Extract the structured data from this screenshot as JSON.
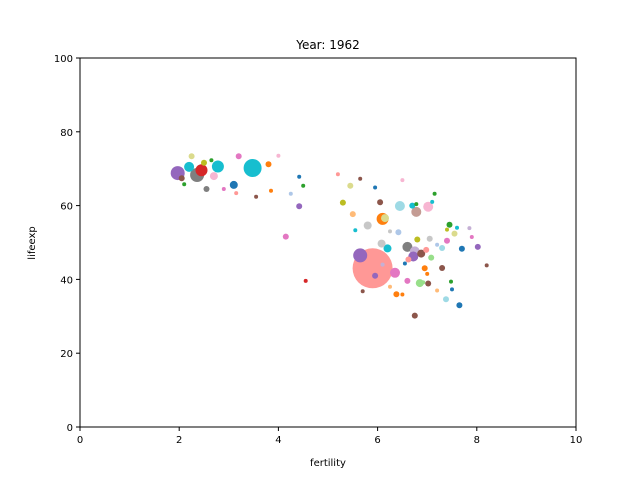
{
  "chart_data": {
    "type": "scatter",
    "title": "Year: 1962",
    "xlabel": "fertility",
    "ylabel": "lifeexp",
    "xlim": [
      0,
      10
    ],
    "ylim": [
      0,
      100
    ],
    "xticks": [
      "0",
      "2",
      "4",
      "6",
      "8",
      "10"
    ],
    "yticks": [
      "0",
      "20",
      "40",
      "60",
      "80",
      "100"
    ],
    "grid": false,
    "legend": "none",
    "points": [
      {
        "x": 5.9,
        "y": 43.0,
        "s": 20,
        "color": "#ff9896"
      },
      {
        "x": 3.48,
        "y": 70.2,
        "s": 9,
        "color": "#17becf"
      },
      {
        "x": 5.65,
        "y": 46.5,
        "s": 7,
        "color": "#9467bd"
      },
      {
        "x": 2.36,
        "y": 68.3,
        "s": 7,
        "color": "#7f7f7f"
      },
      {
        "x": 1.97,
        "y": 68.8,
        "s": 7,
        "color": "#9467bd"
      },
      {
        "x": 2.45,
        "y": 69.6,
        "s": 6,
        "color": "#d62728"
      },
      {
        "x": 2.78,
        "y": 70.6,
        "s": 6,
        "color": "#17becf"
      },
      {
        "x": 2.2,
        "y": 70.5,
        "s": 5,
        "color": "#17becf"
      },
      {
        "x": 6.1,
        "y": 56.4,
        "s": 6,
        "color": "#ff7f0e"
      },
      {
        "x": 6.15,
        "y": 56.6,
        "s": 4,
        "color": "#dbdb8d"
      },
      {
        "x": 6.78,
        "y": 58.3,
        "s": 5,
        "color": "#c49c94"
      },
      {
        "x": 6.45,
        "y": 59.9,
        "s": 5,
        "color": "#9edae5"
      },
      {
        "x": 7.02,
        "y": 59.7,
        "s": 5,
        "color": "#f7b6d2"
      },
      {
        "x": 6.35,
        "y": 41.8,
        "s": 5,
        "color": "#e377c2"
      },
      {
        "x": 6.2,
        "y": 48.4,
        "s": 4,
        "color": "#17becf"
      },
      {
        "x": 6.6,
        "y": 48.8,
        "s": 5,
        "color": "#7f7f7f"
      },
      {
        "x": 6.75,
        "y": 47.6,
        "s": 5,
        "color": "#c5b0d5"
      },
      {
        "x": 6.88,
        "y": 47.0,
        "s": 4,
        "color": "#8c564b"
      },
      {
        "x": 6.72,
        "y": 46.2,
        "s": 5,
        "color": "#9467bd"
      },
      {
        "x": 5.8,
        "y": 54.6,
        "s": 4,
        "color": "#c7c7c7"
      },
      {
        "x": 6.08,
        "y": 49.7,
        "s": 4,
        "color": "#c7c7c7"
      },
      {
        "x": 6.85,
        "y": 39.0,
        "s": 4,
        "color": "#98df8a"
      },
      {
        "x": 2.7,
        "y": 68.0,
        "s": 4,
        "color": "#f7b6d2"
      },
      {
        "x": 3.1,
        "y": 65.6,
        "s": 4,
        "color": "#1f77b4"
      },
      {
        "x": 3.8,
        "y": 71.2,
        "s": 3,
        "color": "#ff7f0e"
      },
      {
        "x": 6.38,
        "y": 36.0,
        "s": 3,
        "color": "#ff7f0e"
      },
      {
        "x": 6.42,
        "y": 52.8,
        "s": 3,
        "color": "#aec7e8"
      },
      {
        "x": 2.05,
        "y": 67.4,
        "s": 3,
        "color": "#8c564b"
      },
      {
        "x": 2.5,
        "y": 71.6,
        "s": 3,
        "color": "#bcbd22"
      },
      {
        "x": 2.25,
        "y": 73.4,
        "s": 3,
        "color": "#dbdb8d"
      },
      {
        "x": 3.2,
        "y": 73.4,
        "s": 3,
        "color": "#e377c2"
      },
      {
        "x": 2.55,
        "y": 64.5,
        "s": 3,
        "color": "#7f7f7f"
      },
      {
        "x": 4.15,
        "y": 51.6,
        "s": 3,
        "color": "#e377c2"
      },
      {
        "x": 4.42,
        "y": 59.8,
        "s": 3,
        "color": "#9467bd"
      },
      {
        "x": 5.45,
        "y": 65.4,
        "s": 3,
        "color": "#dbdb8d"
      },
      {
        "x": 5.3,
        "y": 60.8,
        "s": 3,
        "color": "#bcbd22"
      },
      {
        "x": 5.5,
        "y": 57.7,
        "s": 3,
        "color": "#ffbb78"
      },
      {
        "x": 6.05,
        "y": 60.9,
        "s": 3,
        "color": "#8c564b"
      },
      {
        "x": 6.7,
        "y": 60.0,
        "s": 3,
        "color": "#17becf"
      },
      {
        "x": 6.8,
        "y": 50.8,
        "s": 3,
        "color": "#bcbd22"
      },
      {
        "x": 7.05,
        "y": 51.0,
        "s": 3,
        "color": "#c7c7c7"
      },
      {
        "x": 7.4,
        "y": 50.5,
        "s": 3,
        "color": "#e377c2"
      },
      {
        "x": 7.3,
        "y": 48.5,
        "s": 3,
        "color": "#9edae5"
      },
      {
        "x": 7.55,
        "y": 52.4,
        "s": 3,
        "color": "#dbdb8d"
      },
      {
        "x": 7.45,
        "y": 54.8,
        "s": 3,
        "color": "#2ca02c"
      },
      {
        "x": 7.6,
        "y": 54.0,
        "s": 2,
        "color": "#17becf"
      },
      {
        "x": 7.7,
        "y": 48.3,
        "s": 3,
        "color": "#1f77b4"
      },
      {
        "x": 8.02,
        "y": 48.8,
        "s": 3,
        "color": "#9467bd"
      },
      {
        "x": 7.2,
        "y": 49.4,
        "s": 2,
        "color": "#aec7e8"
      },
      {
        "x": 6.98,
        "y": 48.0,
        "s": 3,
        "color": "#ff9896"
      },
      {
        "x": 7.08,
        "y": 45.9,
        "s": 3,
        "color": "#98df8a"
      },
      {
        "x": 6.62,
        "y": 45.4,
        "s": 3,
        "color": "#ff9896"
      },
      {
        "x": 6.55,
        "y": 44.3,
        "s": 2,
        "color": "#1f77b4"
      },
      {
        "x": 6.95,
        "y": 43.0,
        "s": 3,
        "color": "#ff7f0e"
      },
      {
        "x": 7.3,
        "y": 43.1,
        "s": 3,
        "color": "#8c564b"
      },
      {
        "x": 7.48,
        "y": 39.4,
        "s": 2,
        "color": "#2ca02c"
      },
      {
        "x": 7.02,
        "y": 38.9,
        "s": 3,
        "color": "#8c564b"
      },
      {
        "x": 6.92,
        "y": 39.2,
        "s": 2,
        "color": "#98df8a"
      },
      {
        "x": 6.6,
        "y": 39.6,
        "s": 3,
        "color": "#e377c2"
      },
      {
        "x": 7.38,
        "y": 34.6,
        "s": 3,
        "color": "#9edae5"
      },
      {
        "x": 7.65,
        "y": 33.0,
        "s": 3,
        "color": "#1f77b4"
      },
      {
        "x": 6.75,
        "y": 30.2,
        "s": 3,
        "color": "#8c564b"
      },
      {
        "x": 7.5,
        "y": 37.3,
        "s": 2,
        "color": "#1f77b4"
      },
      {
        "x": 7.2,
        "y": 37.0,
        "s": 2,
        "color": "#ffbb78"
      },
      {
        "x": 6.5,
        "y": 35.9,
        "s": 2,
        "color": "#ff7f0e"
      },
      {
        "x": 7.0,
        "y": 41.5,
        "s": 2,
        "color": "#ff7f0e"
      },
      {
        "x": 5.95,
        "y": 41.0,
        "s": 3,
        "color": "#9467bd"
      },
      {
        "x": 6.1,
        "y": 44.0,
        "s": 2,
        "color": "#c5b0d5"
      },
      {
        "x": 6.25,
        "y": 53.0,
        "s": 2,
        "color": "#c7c7c7"
      },
      {
        "x": 5.55,
        "y": 53.3,
        "s": 2,
        "color": "#17becf"
      },
      {
        "x": 5.2,
        "y": 68.5,
        "s": 2,
        "color": "#ff9896"
      },
      {
        "x": 5.65,
        "y": 67.3,
        "s": 2,
        "color": "#8c564b"
      },
      {
        "x": 5.95,
        "y": 64.9,
        "s": 2,
        "color": "#1f77b4"
      },
      {
        "x": 6.5,
        "y": 66.9,
        "s": 2,
        "color": "#f7b6d2"
      },
      {
        "x": 6.78,
        "y": 60.4,
        "s": 2,
        "color": "#2ca02c"
      },
      {
        "x": 7.1,
        "y": 61.0,
        "s": 2,
        "color": "#17becf"
      },
      {
        "x": 7.15,
        "y": 63.2,
        "s": 2,
        "color": "#2ca02c"
      },
      {
        "x": 7.4,
        "y": 53.5,
        "s": 2,
        "color": "#bcbd22"
      },
      {
        "x": 7.85,
        "y": 53.9,
        "s": 2,
        "color": "#c5b0d5"
      },
      {
        "x": 7.9,
        "y": 51.5,
        "s": 2,
        "color": "#e377c2"
      },
      {
        "x": 8.2,
        "y": 43.8,
        "s": 2,
        "color": "#8c564b"
      },
      {
        "x": 2.1,
        "y": 65.8,
        "s": 2,
        "color": "#2ca02c"
      },
      {
        "x": 2.65,
        "y": 72.3,
        "s": 2,
        "color": "#2ca02c"
      },
      {
        "x": 2.9,
        "y": 64.5,
        "s": 2,
        "color": "#e377c2"
      },
      {
        "x": 3.15,
        "y": 63.4,
        "s": 2,
        "color": "#ff9896"
      },
      {
        "x": 3.85,
        "y": 64.0,
        "s": 2,
        "color": "#ff7f0e"
      },
      {
        "x": 3.55,
        "y": 62.4,
        "s": 2,
        "color": "#8c564b"
      },
      {
        "x": 4.0,
        "y": 73.5,
        "s": 2,
        "color": "#f7b6d2"
      },
      {
        "x": 4.25,
        "y": 63.2,
        "s": 2,
        "color": "#aec7e8"
      },
      {
        "x": 4.5,
        "y": 65.4,
        "s": 2,
        "color": "#2ca02c"
      },
      {
        "x": 4.42,
        "y": 67.8,
        "s": 2,
        "color": "#1f77b4"
      },
      {
        "x": 4.55,
        "y": 39.6,
        "s": 2,
        "color": "#d62728"
      },
      {
        "x": 5.7,
        "y": 36.8,
        "s": 2,
        "color": "#8c564b"
      },
      {
        "x": 6.25,
        "y": 38.0,
        "s": 2,
        "color": "#ffbb78"
      }
    ]
  }
}
